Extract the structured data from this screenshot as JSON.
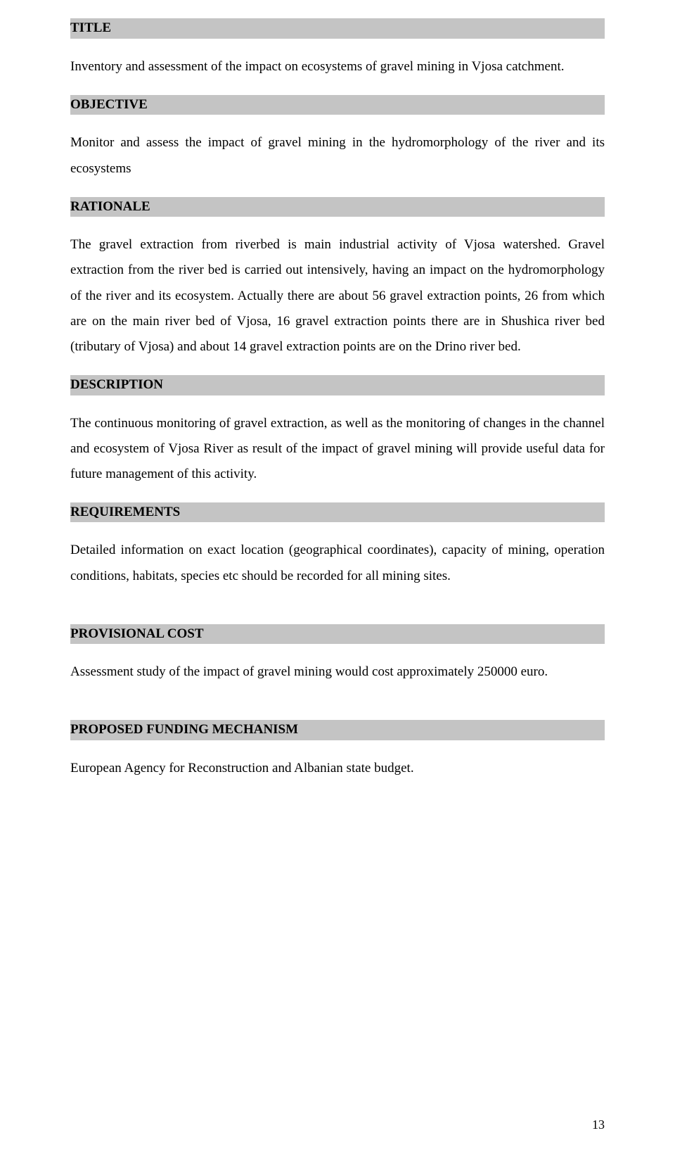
{
  "page": {
    "number": "13",
    "background_color": "#ffffff",
    "text_color": "#000000",
    "heading_bg": "#c4c4c4",
    "font_family": "Times New Roman",
    "body_fontsize_pt": 14,
    "heading_fontsize_pt": 14
  },
  "sections": {
    "title": {
      "heading": "TITLE",
      "body": "Inventory and assessment of the impact on ecosystems of gravel mining in Vjosa catchment."
    },
    "objective": {
      "heading": "OBJECTIVE",
      "body": "Monitor and assess the impact of gravel mining in the hydromorphology of the river and its ecosystems"
    },
    "rationale": {
      "heading": "RATIONALE",
      "body": "The gravel extraction from riverbed is main industrial activity of Vjosa watershed. Gravel extraction from the river bed is carried out intensively, having an impact on the hydromorphology of the river and its ecosystem. Actually there are about 56 gravel extraction points, 26 from which are on the main river bed of Vjosa, 16 gravel extraction points there are in Shushica river bed (tributary of Vjosa) and about 14 gravel extraction points are on the Drino river bed."
    },
    "description": {
      "heading": "DESCRIPTION",
      "body": "The continuous monitoring of gravel extraction, as well as the monitoring of changes in the channel and ecosystem of Vjosa River as result of the impact of gravel mining will provide useful data for future management of this activity."
    },
    "requirements": {
      "heading": "REQUIREMENTS",
      "body": "Detailed information on exact location (geographical coordinates), capacity of mining, operation conditions, habitats, species etc should be recorded for all mining sites."
    },
    "provisional_cost": {
      "heading": "PROVISIONAL COST",
      "body": "Assessment study of the impact of gravel mining would cost approximately 250000 euro."
    },
    "proposed_funding": {
      "heading": "PROPOSED FUNDING MECHANISM",
      "body": "European Agency for Reconstruction and Albanian state budget."
    }
  }
}
